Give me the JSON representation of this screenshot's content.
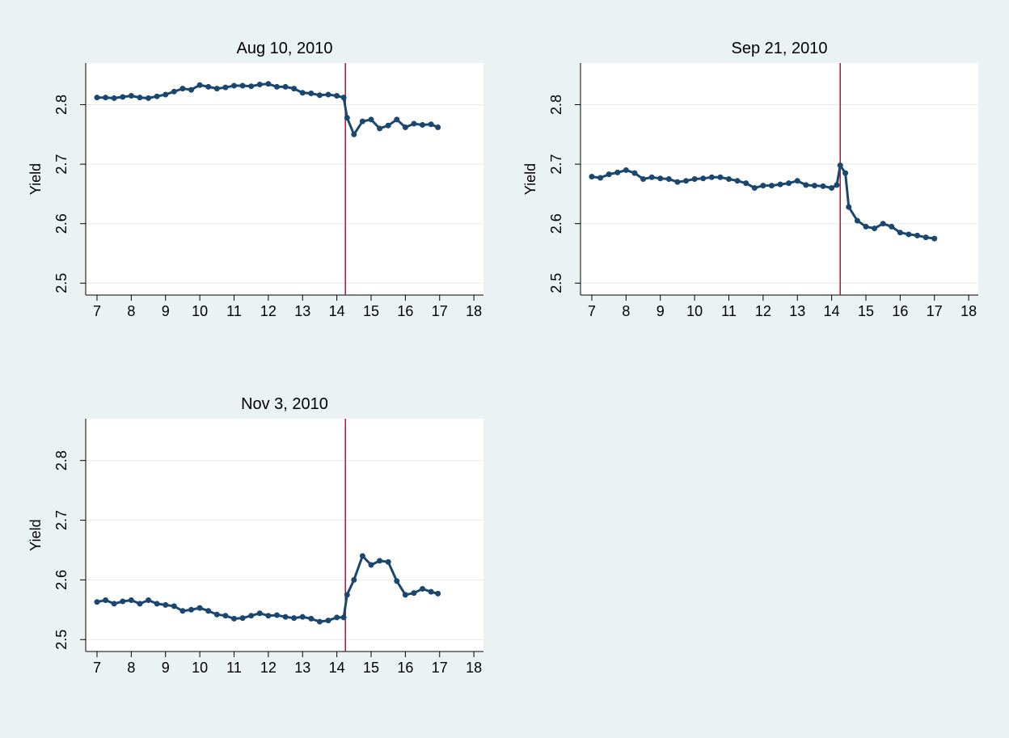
{
  "chart_data": [
    {
      "type": "line",
      "title": "Aug 10, 2010",
      "ylabel": "Yield",
      "color": "#1a476f",
      "vline_x": 14.25,
      "vline_color": "#a0183a",
      "grid": true,
      "xlim": [
        6.67,
        18.28
      ],
      "ylim": [
        2.48,
        2.87
      ],
      "xticks": [
        7,
        8,
        9,
        10,
        11,
        12,
        13,
        14,
        15,
        16,
        17,
        18
      ],
      "yticks": [
        2.5,
        2.6,
        2.7,
        2.8
      ],
      "x": [
        7.0,
        7.25,
        7.5,
        7.75,
        8.0,
        8.25,
        8.5,
        8.75,
        9.0,
        9.25,
        9.5,
        9.75,
        10.0,
        10.25,
        10.5,
        10.75,
        11.0,
        11.25,
        11.5,
        11.75,
        12.0,
        12.25,
        12.5,
        12.75,
        13.0,
        13.25,
        13.5,
        13.75,
        14.0,
        14.2,
        14.3,
        14.5,
        14.75,
        15.0,
        15.25,
        15.5,
        15.75,
        16.0,
        16.25,
        16.5,
        16.75,
        16.95
      ],
      "values": [
        2.812,
        2.812,
        2.811,
        2.813,
        2.815,
        2.812,
        2.811,
        2.814,
        2.817,
        2.822,
        2.827,
        2.825,
        2.833,
        2.83,
        2.827,
        2.829,
        2.832,
        2.832,
        2.831,
        2.834,
        2.835,
        2.83,
        2.83,
        2.827,
        2.82,
        2.819,
        2.816,
        2.817,
        2.815,
        2.812,
        2.778,
        2.75,
        2.772,
        2.775,
        2.76,
        2.765,
        2.775,
        2.762,
        2.768,
        2.766,
        2.767,
        2.762
      ]
    },
    {
      "type": "line",
      "title": "Sep 21, 2010",
      "ylabel": "Yield",
      "color": "#1a476f",
      "vline_x": 14.25,
      "vline_color": "#a0183a",
      "grid": true,
      "xlim": [
        6.67,
        18.28
      ],
      "ylim": [
        2.48,
        2.87
      ],
      "xticks": [
        7,
        8,
        9,
        10,
        11,
        12,
        13,
        14,
        15,
        16,
        17,
        18
      ],
      "yticks": [
        2.5,
        2.6,
        2.7,
        2.8
      ],
      "x": [
        7.0,
        7.25,
        7.5,
        7.75,
        8.0,
        8.25,
        8.5,
        8.75,
        9.0,
        9.25,
        9.5,
        9.75,
        10.0,
        10.25,
        10.5,
        10.75,
        11.0,
        11.25,
        11.5,
        11.75,
        12.0,
        12.25,
        12.5,
        12.75,
        13.0,
        13.25,
        13.5,
        13.75,
        14.0,
        14.15,
        14.25,
        14.4,
        14.5,
        14.75,
        15.0,
        15.25,
        15.5,
        15.75,
        16.0,
        16.25,
        16.5,
        16.75,
        17.0
      ],
      "values": [
        2.679,
        2.677,
        2.683,
        2.686,
        2.69,
        2.685,
        2.675,
        2.678,
        2.676,
        2.675,
        2.67,
        2.672,
        2.675,
        2.676,
        2.678,
        2.678,
        2.675,
        2.672,
        2.668,
        2.66,
        2.664,
        2.664,
        2.666,
        2.668,
        2.672,
        2.665,
        2.664,
        2.663,
        2.66,
        2.665,
        2.698,
        2.685,
        2.628,
        2.605,
        2.595,
        2.592,
        2.6,
        2.595,
        2.585,
        2.582,
        2.58,
        2.577,
        2.575
      ]
    },
    {
      "type": "line",
      "title": "Nov 3, 2010",
      "ylabel": "Yield",
      "color": "#1a476f",
      "vline_x": 14.25,
      "vline_color": "#a0183a",
      "grid": true,
      "xlim": [
        6.67,
        18.28
      ],
      "ylim": [
        2.48,
        2.87
      ],
      "xticks": [
        7,
        8,
        9,
        10,
        11,
        12,
        13,
        14,
        15,
        16,
        17,
        18
      ],
      "yticks": [
        2.5,
        2.6,
        2.7,
        2.8
      ],
      "x": [
        7.0,
        7.25,
        7.5,
        7.75,
        8.0,
        8.25,
        8.5,
        8.75,
        9.0,
        9.25,
        9.5,
        9.75,
        10.0,
        10.25,
        10.5,
        10.75,
        11.0,
        11.25,
        11.5,
        11.75,
        12.0,
        12.25,
        12.5,
        12.75,
        13.0,
        13.25,
        13.5,
        13.75,
        14.0,
        14.2,
        14.3,
        14.5,
        14.75,
        15.0,
        15.25,
        15.5,
        15.75,
        16.0,
        16.25,
        16.5,
        16.75,
        16.95
      ],
      "values": [
        2.563,
        2.566,
        2.56,
        2.564,
        2.566,
        2.56,
        2.566,
        2.56,
        2.558,
        2.556,
        2.548,
        2.55,
        2.553,
        2.548,
        2.542,
        2.54,
        2.535,
        2.536,
        2.54,
        2.544,
        2.54,
        2.541,
        2.538,
        2.536,
        2.538,
        2.535,
        2.53,
        2.532,
        2.537,
        2.537,
        2.575,
        2.6,
        2.64,
        2.625,
        2.632,
        2.63,
        2.598,
        2.575,
        2.578,
        2.585,
        2.58,
        2.577
      ]
    }
  ]
}
